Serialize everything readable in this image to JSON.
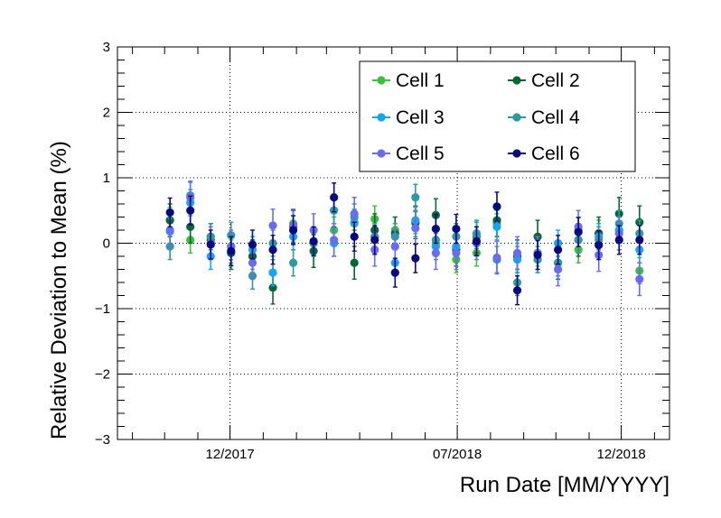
{
  "chart_data": {
    "type": "scatter",
    "title": "",
    "xlabel": "Run Date [MM/YYYY]",
    "ylabel": "Relative Deviation to Mean (%)",
    "xlim": [
      "2017-08-18",
      "2019-01-15"
    ],
    "ylim": [
      -3,
      3
    ],
    "x_ticks": [
      "2017-12-01",
      "2018-07-01",
      "2018-12-01"
    ],
    "x_tick_labels": [
      "12/2017",
      "07/2018",
      "12/2018"
    ],
    "y_ticks": [
      -3,
      -2,
      -1,
      0,
      1,
      2,
      3
    ],
    "y_tick_labels": [
      "−3",
      "−2",
      "−1",
      "0",
      "1",
      "2",
      "3"
    ],
    "grid": true,
    "legend_position": "top-right",
    "x": [
      "2017-10-06",
      "2017-10-25",
      "2017-11-13",
      "2017-12-02",
      "2017-12-22",
      "2018-01-10",
      "2018-01-29",
      "2018-02-17",
      "2018-03-08",
      "2018-03-27",
      "2018-04-15",
      "2018-05-04",
      "2018-05-23",
      "2018-06-11",
      "2018-06-30",
      "2018-07-19",
      "2018-08-07",
      "2018-08-26",
      "2018-09-14",
      "2018-10-03",
      "2018-10-22",
      "2018-11-10",
      "2018-11-29",
      "2018-12-18"
    ],
    "series": [
      {
        "name": "Cell 1",
        "color": "#3cbf3c",
        "values": [
          0.35,
          0.05,
          0.1,
          -0.15,
          -0.2,
          -0.45,
          0.3,
          0.0,
          0.2,
          0.3,
          0.37,
          0.2,
          0.3,
          0.0,
          -0.25,
          -0.15,
          0.3,
          -0.2,
          -0.15,
          -0.3,
          -0.1,
          0.15,
          0.2,
          -0.42
        ],
        "errors": [
          0.2,
          0.2,
          0.2,
          0.2,
          0.2,
          0.2,
          0.2,
          0.2,
          0.2,
          0.2,
          0.2,
          0.2,
          0.2,
          0.2,
          0.2,
          0.2,
          0.2,
          0.2,
          0.2,
          0.2,
          0.2,
          0.2,
          0.2,
          0.2
        ]
      },
      {
        "name": "Cell 2",
        "color": "#0a6632",
        "values": [
          0.35,
          0.25,
          0.05,
          -0.15,
          -0.2,
          -0.68,
          0.25,
          -0.12,
          0.5,
          -0.3,
          0.2,
          0.15,
          0.32,
          0.43,
          -0.1,
          0.1,
          0.35,
          -0.2,
          0.1,
          -0.3,
          0.05,
          0.15,
          0.45,
          0.32
        ],
        "errors": [
          0.25,
          0.25,
          0.25,
          0.25,
          0.25,
          0.25,
          0.25,
          0.25,
          0.25,
          0.25,
          0.25,
          0.25,
          0.25,
          0.25,
          0.25,
          0.25,
          0.25,
          0.25,
          0.25,
          0.25,
          0.25,
          0.25,
          0.25,
          0.25
        ]
      },
      {
        "name": "Cell 3",
        "color": "#1aa3f0",
        "values": [
          0.18,
          0.62,
          -0.2,
          -0.05,
          -0.1,
          -0.45,
          0.1,
          0.02,
          0.0,
          0.32,
          0.1,
          -0.3,
          0.35,
          -0.05,
          -0.05,
          0.15,
          0.25,
          -0.25,
          -0.25,
          0.0,
          0.2,
          0.1,
          0.2,
          -0.1
        ],
        "errors": [
          0.2,
          0.2,
          0.2,
          0.2,
          0.2,
          0.2,
          0.2,
          0.2,
          0.2,
          0.2,
          0.2,
          0.2,
          0.2,
          0.2,
          0.2,
          0.2,
          0.2,
          0.2,
          0.2,
          0.2,
          0.2,
          0.2,
          0.2,
          0.2
        ]
      },
      {
        "name": "Cell 4",
        "color": "#2e9a9a",
        "values": [
          -0.05,
          0.73,
          0.1,
          0.12,
          -0.5,
          0.0,
          -0.3,
          0.0,
          0.5,
          0.4,
          0.1,
          0.1,
          0.7,
          0.05,
          0.1,
          0.12,
          -0.25,
          -0.6,
          -0.25,
          -0.3,
          0.05,
          0.05,
          0.3,
          0.15
        ],
        "errors": [
          0.2,
          0.2,
          0.2,
          0.2,
          0.2,
          0.2,
          0.2,
          0.2,
          0.2,
          0.2,
          0.2,
          0.2,
          0.2,
          0.2,
          0.2,
          0.2,
          0.2,
          0.2,
          0.2,
          0.2,
          0.2,
          0.2,
          0.2,
          0.2
        ]
      },
      {
        "name": "Cell 5",
        "color": "#6b6bf0",
        "values": [
          0.2,
          0.7,
          0.0,
          -0.05,
          -0.3,
          0.27,
          0.27,
          0.2,
          0.05,
          0.45,
          -0.1,
          -0.05,
          0.23,
          -0.15,
          -0.15,
          0.0,
          -0.22,
          -0.15,
          -0.15,
          -0.4,
          0.25,
          -0.18,
          0.15,
          -0.55
        ],
        "errors": [
          0.25,
          0.25,
          0.25,
          0.25,
          0.25,
          0.25,
          0.25,
          0.25,
          0.25,
          0.25,
          0.25,
          0.25,
          0.25,
          0.25,
          0.25,
          0.25,
          0.25,
          0.25,
          0.25,
          0.25,
          0.25,
          0.25,
          0.25,
          0.25
        ]
      },
      {
        "name": "Cell 6",
        "color": "#0a0a7d",
        "values": [
          0.47,
          0.5,
          -0.02,
          -0.12,
          -0.02,
          -0.1,
          0.2,
          0.03,
          0.7,
          0.1,
          0.05,
          -0.45,
          -0.23,
          0.22,
          0.22,
          0.03,
          0.56,
          -0.72,
          -0.18,
          -0.1,
          0.17,
          -0.03,
          0.05,
          0.05
        ],
        "errors": [
          0.22,
          0.22,
          0.22,
          0.22,
          0.22,
          0.22,
          0.22,
          0.22,
          0.22,
          0.22,
          0.22,
          0.22,
          0.22,
          0.22,
          0.22,
          0.22,
          0.22,
          0.22,
          0.22,
          0.22,
          0.22,
          0.22,
          0.22,
          0.22
        ]
      }
    ]
  }
}
